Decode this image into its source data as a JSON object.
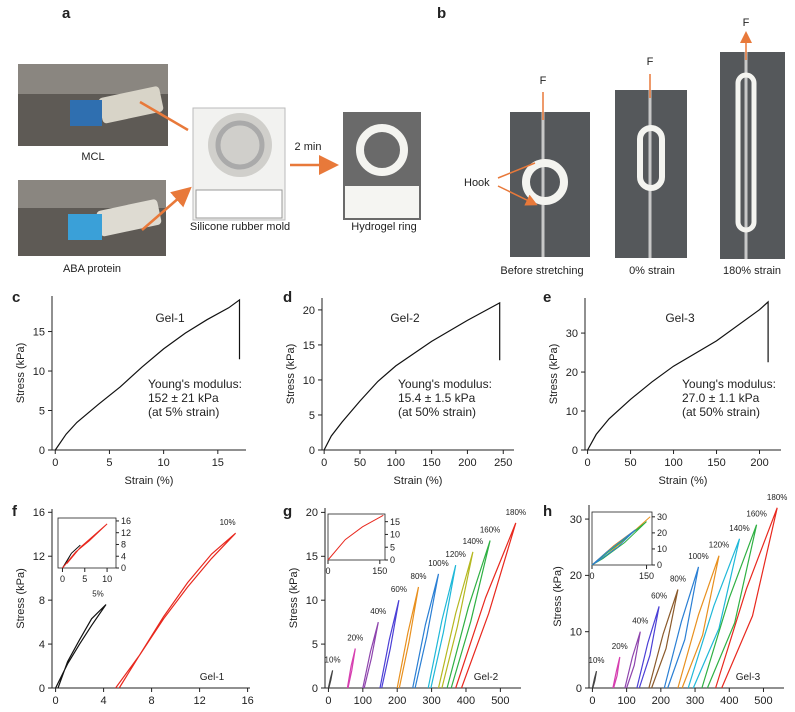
{
  "panel_a": {
    "label": "a",
    "captions": [
      "MCL",
      "ABA protein",
      "Silicone rubber mold",
      "Hydrogel ring"
    ],
    "arrow_label": "2 min"
  },
  "panel_b": {
    "label": "b",
    "force_labels": [
      "F",
      "F",
      "F"
    ],
    "hook_label": "Hook",
    "captions": [
      "Before stretching",
      "0% strain",
      "180% strain"
    ]
  },
  "chart_data": [
    {
      "type": "line",
      "panel": "c",
      "xlabel": "Strain (%)",
      "ylabel": "Stress (kPa)",
      "xlim": [
        -0.3,
        17.6
      ],
      "ylim": [
        0,
        19.5
      ],
      "xticks": [
        0,
        5,
        10,
        15
      ],
      "yticks": [
        0,
        5,
        10,
        15
      ],
      "annotation": {
        "label": "Gel-1",
        "lines": [
          "Young's modulus:",
          "152 ± 21 kPa",
          "(at 5% strain)"
        ]
      },
      "series": [
        {
          "color": "#111111",
          "x": [
            0,
            1,
            2,
            4,
            6,
            8,
            10,
            12,
            14,
            16,
            17,
            17
          ],
          "values": [
            0,
            2,
            3.5,
            5.8,
            8,
            10.5,
            12.8,
            14.8,
            16.5,
            18,
            19,
            11.5
          ]
        }
      ]
    },
    {
      "type": "line",
      "panel": "d",
      "xlabel": "Strain (%)",
      "ylabel": "Stress (kPa)",
      "xlim": [
        -3,
        265
      ],
      "ylim": [
        0,
        21.7
      ],
      "xticks": [
        0,
        50,
        100,
        150,
        200,
        250
      ],
      "yticks": [
        0,
        5,
        10,
        15,
        20
      ],
      "annotation": {
        "label": "Gel-2",
        "lines": [
          "Young's modulus:",
          "15.4 ± 1.5 kPa",
          "(at 50% strain)"
        ]
      },
      "series": [
        {
          "color": "#111111",
          "x": [
            0,
            10,
            25,
            50,
            75,
            100,
            150,
            200,
            245,
            245
          ],
          "values": [
            0,
            2,
            4,
            7,
            9.8,
            12,
            15.5,
            18.5,
            21,
            12.8
          ]
        }
      ]
    },
    {
      "type": "line",
      "panel": "e",
      "xlabel": "Strain (%)",
      "ylabel": "Stress (kPa)",
      "xlim": [
        -3,
        225
      ],
      "ylim": [
        0,
        39
      ],
      "xticks": [
        0,
        50,
        100,
        150,
        200
      ],
      "yticks": [
        0,
        10,
        20,
        30
      ],
      "annotation": {
        "label": "Gel-3",
        "lines": [
          "Young's modulus:",
          "27.0 ± 1.1 kPa",
          "(at 50% strain)"
        ]
      },
      "series": [
        {
          "color": "#111111",
          "x": [
            0,
            10,
            25,
            50,
            75,
            100,
            150,
            200,
            210,
            210
          ],
          "values": [
            0,
            4,
            8,
            13,
            17.5,
            21.5,
            28,
            36,
            38,
            22.5
          ]
        }
      ]
    },
    {
      "type": "line",
      "panel": "f",
      "xlabel": "Strain (%)",
      "ylabel": "Stress (kPa)",
      "xlim": [
        -0.3,
        16.2
      ],
      "ylim": [
        0,
        16.3
      ],
      "xticks": [
        0,
        4,
        8,
        12,
        16
      ],
      "yticks": [
        0,
        4,
        8,
        12,
        16
      ],
      "annotation": {
        "label": "Gel-1"
      },
      "series": [
        {
          "name": "5%",
          "color": "#111111",
          "x": [
            0,
            1,
            2,
            3,
            4.2,
            3,
            2,
            1,
            0.2
          ],
          "values": [
            0,
            2.2,
            4,
            5.7,
            7.6,
            6.3,
            4.4,
            2.4,
            0
          ]
        },
        {
          "name": "10%",
          "color": "#e8281e",
          "x": [
            5,
            7,
            9,
            11,
            13,
            15,
            13,
            11,
            9,
            7,
            5.3
          ],
          "values": [
            0,
            3,
            6.3,
            9.2,
            11.8,
            14.1,
            12.2,
            9.6,
            6.5,
            3,
            0
          ]
        }
      ]
    },
    {
      "type": "line",
      "xlim": [
        -1,
        12
      ],
      "ylim": [
        0,
        17
      ],
      "xticks": [
        0,
        5,
        10
      ],
      "yticks": [
        0,
        4,
        8,
        12,
        16
      ],
      "series": [
        {
          "color": "#111111",
          "x": [
            0,
            2,
            4,
            2,
            0.5
          ],
          "values": [
            0,
            5,
            7.8,
            5,
            1
          ]
        },
        {
          "color": "#e8281e",
          "x": [
            0,
            3,
            6,
            10,
            7,
            4,
            1
          ],
          "values": [
            0,
            5.5,
            9.2,
            15,
            11,
            7,
            1.5
          ]
        }
      ]
    },
    {
      "type": "line",
      "panel": "g",
      "xlabel": "Strain (%)",
      "ylabel": "Stress (kPa)",
      "xlim": [
        -10,
        560
      ],
      "ylim": [
        0,
        20.5
      ],
      "xticks": [
        0,
        100,
        200,
        300,
        400,
        500
      ],
      "yticks": [
        0,
        5,
        10,
        15,
        20
      ],
      "annotation": {
        "label": "Gel-2"
      },
      "series": [
        {
          "name": "10%",
          "color": "#444444",
          "x": [
            0,
            6,
            12,
            7,
            1
          ],
          "values": [
            0,
            1.1,
            2,
            0.9,
            0
          ]
        },
        {
          "name": "20%",
          "color": "#d63fb0",
          "x": [
            55,
            66,
            78,
            68,
            57
          ],
          "values": [
            0,
            2.5,
            4.5,
            2,
            0
          ]
        },
        {
          "name": "40%",
          "color": "#8e44ad",
          "x": [
            100,
            122,
            145,
            125,
            104
          ],
          "values": [
            0,
            4.1,
            7.5,
            3.4,
            0
          ]
        },
        {
          "name": "60%",
          "color": "#4b3fd6",
          "x": [
            150,
            177,
            205,
            180,
            155
          ],
          "values": [
            0,
            5.5,
            10,
            4.5,
            0
          ]
        },
        {
          "name": "80%",
          "color": "#e8901e",
          "x": [
            200,
            231,
            262,
            234,
            206
          ],
          "values": [
            0,
            6.3,
            11.5,
            5.2,
            0
          ]
        },
        {
          "name": "100%",
          "color": "#2a7fd4",
          "x": [
            245,
            282,
            320,
            286,
            252
          ],
          "values": [
            0,
            7.2,
            13,
            5.9,
            0
          ]
        },
        {
          "name": "120%",
          "color": "#1fb8d8",
          "x": [
            290,
            330,
            370,
            334,
            298
          ],
          "values": [
            0,
            7.7,
            14,
            6.3,
            0
          ]
        },
        {
          "name": "140%",
          "color": "#b5b820",
          "x": [
            320,
            370,
            420,
            375,
            330
          ],
          "values": [
            0,
            8.5,
            15.5,
            7,
            0
          ]
        },
        {
          "name": "160%",
          "color": "#2fb043",
          "x": [
            345,
            407,
            470,
            414,
            357
          ],
          "values": [
            0,
            9.2,
            16.8,
            7.6,
            0
          ]
        },
        {
          "name": "180%",
          "color": "#e8281e",
          "x": [
            370,
            457,
            545,
            466,
            387
          ],
          "values": [
            0,
            10.3,
            18.8,
            8.5,
            0
          ]
        }
      ]
    },
    {
      "type": "line",
      "xlim": [
        0,
        165
      ],
      "ylim": [
        0,
        18
      ],
      "xticks": [
        0,
        150
      ],
      "yticks": [
        0,
        5,
        10,
        15
      ],
      "series": [
        {
          "color": "#e8281e",
          "x": [
            0,
            50,
            100,
            160
          ],
          "values": [
            0,
            8,
            13,
            17.5
          ]
        }
      ]
    },
    {
      "type": "line",
      "panel": "h",
      "xlabel": "Strain (%)",
      "ylabel": "Stress (kPa)",
      "xlim": [
        -10,
        560
      ],
      "ylim": [
        0,
        32.5
      ],
      "xticks": [
        0,
        100,
        200,
        300,
        400,
        500
      ],
      "yticks": [
        0,
        10,
        20,
        30
      ],
      "annotation": {
        "label": "Gel-3"
      },
      "series": [
        {
          "name": "10%",
          "color": "#444444",
          "x": [
            0,
            6,
            12,
            7,
            1
          ],
          "values": [
            0,
            1.7,
            3,
            1.3,
            0
          ]
        },
        {
          "name": "20%",
          "color": "#d63fb0",
          "x": [
            60,
            70,
            80,
            72,
            62
          ],
          "values": [
            0,
            3,
            5.5,
            2.2,
            0
          ]
        },
        {
          "name": "40%",
          "color": "#8e44ad",
          "x": [
            95,
            117,
            140,
            122,
            100
          ],
          "values": [
            0,
            5.5,
            10,
            4,
            0
          ]
        },
        {
          "name": "60%",
          "color": "#4b3fd6",
          "x": [
            130,
            162,
            195,
            168,
            137
          ],
          "values": [
            0,
            8,
            14.5,
            5.8,
            0
          ]
        },
        {
          "name": "80%",
          "color": "#8b5a2b",
          "x": [
            165,
            207,
            250,
            215,
            173
          ],
          "values": [
            0,
            9.6,
            17.5,
            7,
            0
          ]
        },
        {
          "name": "100%",
          "color": "#2a7fd4",
          "x": [
            210,
            260,
            310,
            270,
            220
          ],
          "values": [
            0,
            11.8,
            21.5,
            8.6,
            0
          ]
        },
        {
          "name": "120%",
          "color": "#e8901e",
          "x": [
            250,
            310,
            370,
            322,
            262
          ],
          "values": [
            0,
            13,
            23.5,
            9.4,
            0
          ]
        },
        {
          "name": "140%",
          "color": "#1fb8d8",
          "x": [
            280,
            355,
            430,
            370,
            295
          ],
          "values": [
            0,
            14.6,
            26.5,
            10.6,
            0
          ]
        },
        {
          "name": "160%",
          "color": "#2fb043",
          "x": [
            320,
            400,
            480,
            416,
            336
          ],
          "values": [
            0,
            16,
            29,
            11.6,
            0
          ]
        },
        {
          "name": "180%",
          "color": "#e8281e",
          "x": [
            360,
            450,
            540,
            468,
            378
          ],
          "values": [
            0,
            17.6,
            32,
            12.8,
            0
          ]
        }
      ]
    },
    {
      "type": "line",
      "xlim": [
        0,
        165
      ],
      "ylim": [
        0,
        33
      ],
      "xticks": [
        0,
        150
      ],
      "yticks": [
        0,
        10,
        20,
        30
      ],
      "series": [
        {
          "color": "#e8901e",
          "x": [
            0,
            60,
            120,
            160,
            100,
            40,
            0
          ],
          "values": [
            0,
            12,
            22,
            30,
            18,
            6,
            0
          ]
        },
        {
          "color": "#2fb043",
          "x": [
            0,
            50,
            100,
            150,
            90,
            30,
            0
          ],
          "values": [
            0,
            9,
            18,
            27,
            14,
            4,
            0
          ]
        },
        {
          "color": "#2a7fd4",
          "x": [
            0,
            40,
            80,
            120,
            70,
            20,
            0
          ],
          "values": [
            0,
            8,
            15,
            22,
            11,
            3,
            0
          ]
        }
      ]
    }
  ]
}
